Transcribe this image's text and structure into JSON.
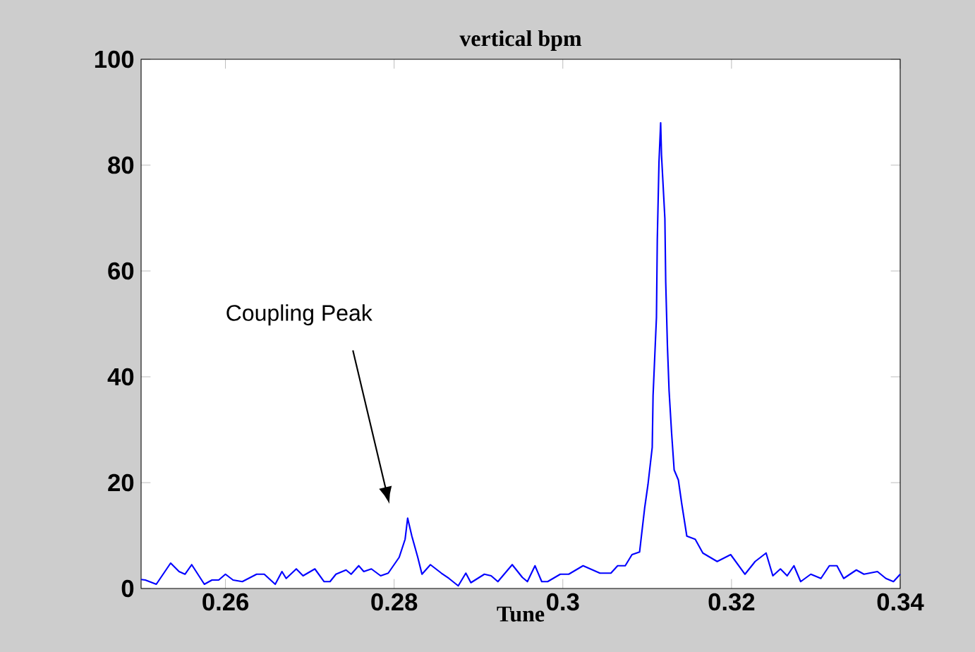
{
  "chart_data": {
    "type": "line",
    "title": "vertical bpm",
    "xlabel": "Tune",
    "color": "#0000ff",
    "x": [
      0.25,
      0.2505,
      0.2518,
      0.2535,
      0.2545,
      0.2552,
      0.256,
      0.2575,
      0.2584,
      0.2592,
      0.26,
      0.2609,
      0.262,
      0.2637,
      0.2646,
      0.2659,
      0.2667,
      0.2672,
      0.2684,
      0.2692,
      0.2706,
      0.2717,
      0.2724,
      0.2731,
      0.2743,
      0.2749,
      0.2758,
      0.2764,
      0.2773,
      0.2784,
      0.2793,
      0.2806,
      0.2813,
      0.2816,
      0.2821,
      0.2828,
      0.2833,
      0.2843,
      0.2856,
      0.2865,
      0.2876,
      0.2885,
      0.2891,
      0.2907,
      0.2915,
      0.2923,
      0.294,
      0.2952,
      0.2958,
      0.2967,
      0.2975,
      0.2982,
      0.2997,
      0.3007,
      0.3024,
      0.3044,
      0.3057,
      0.3065,
      0.3074,
      0.3082,
      0.3091,
      0.3097,
      0.3101,
      0.3106,
      0.3107,
      0.3111,
      0.3112,
      0.3114,
      0.3116,
      0.3117,
      0.3121,
      0.3122,
      0.3124,
      0.3126,
      0.3129,
      0.3132,
      0.3137,
      0.3141,
      0.3147,
      0.3157,
      0.3166,
      0.3183,
      0.3199,
      0.3216,
      0.3228,
      0.3241,
      0.3249,
      0.3258,
      0.3266,
      0.3274,
      0.3282,
      0.3294,
      0.3306,
      0.3316,
      0.3325,
      0.3333,
      0.3348,
      0.3357,
      0.3373,
      0.3383,
      0.3392,
      0.34
    ],
    "values": [
      1.7,
      1.6,
      0.8,
      4.8,
      3.2,
      2.7,
      4.5,
      0.8,
      1.6,
      1.6,
      2.7,
      1.6,
      1.3,
      2.7,
      2.7,
      0.8,
      3.2,
      1.9,
      3.7,
      2.4,
      3.7,
      1.3,
      1.3,
      2.7,
      3.5,
      2.7,
      4.3,
      3.2,
      3.7,
      2.4,
      2.9,
      5.9,
      9.3,
      13.3,
      9.9,
      5.9,
      2.7,
      4.5,
      2.9,
      1.9,
      0.5,
      2.9,
      1.1,
      2.7,
      2.4,
      1.3,
      4.5,
      2.1,
      1.3,
      4.3,
      1.3,
      1.3,
      2.7,
      2.7,
      4.3,
      2.9,
      2.9,
      4.3,
      4.3,
      6.4,
      6.9,
      15.2,
      19.7,
      26.7,
      36.5,
      51.2,
      65.9,
      80.5,
      88,
      81.9,
      69.9,
      57.9,
      45.9,
      37.3,
      29.3,
      22.4,
      20.5,
      16,
      9.9,
      9.3,
      6.7,
      5.1,
      6.4,
      2.7,
      5.1,
      6.7,
      2.4,
      3.7,
      2.4,
      4.3,
      1.3,
      2.7,
      1.9,
      4.3,
      4.3,
      1.9,
      3.5,
      2.7,
      3.2,
      1.9,
      1.3,
      2.7
    ],
    "xlim": [
      0.25,
      0.34
    ],
    "ylim": [
      0,
      100
    ],
    "xticks": [
      0.26,
      0.28,
      0.3,
      0.32,
      0.34
    ],
    "yticks": [
      0,
      20,
      40,
      60,
      80,
      100
    ],
    "annotations": [
      "Coupling Peak"
    ]
  }
}
